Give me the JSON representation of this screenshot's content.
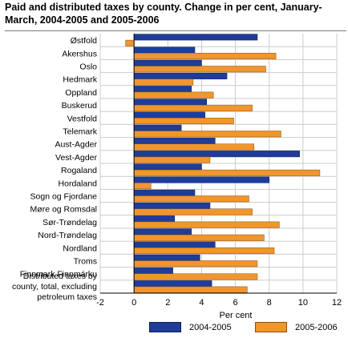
{
  "chart_data": {
    "type": "bar",
    "orientation": "horizontal",
    "title": "Paid and distributed taxes by county. Change in per cent, January-March, 2004-2005 and 2005-2006",
    "xlabel": "Per cent",
    "ylabel": "",
    "xlim": [
      -2,
      12
    ],
    "xticks": [
      -2,
      0,
      2,
      4,
      6,
      8,
      10,
      12
    ],
    "grid": "vertical",
    "legend_position": "bottom",
    "categories": [
      "Østfold",
      "Akershus",
      "Oslo",
      "Hedmark",
      "Oppland",
      "Buskerud",
      "Vestfold",
      "Telemark",
      "Aust-Agder",
      "Vest-Agder",
      "Rogaland",
      "Hordaland",
      "Sogn og Fjordane",
      "Møre og Romsdal",
      "Sør-Trøndelag",
      "Nord-Trøndelag",
      "Nordland",
      "Troms",
      "Finnmark Finnmárku",
      "Distributed taxes by county, total, excluding petroleum taxes"
    ],
    "series": [
      {
        "name": "2004-2005",
        "color": "#1f3c99",
        "values": [
          7.3,
          3.6,
          4.0,
          5.5,
          3.4,
          4.3,
          4.2,
          2.8,
          4.8,
          9.8,
          4.0,
          8.0,
          3.6,
          4.5,
          2.4,
          3.4,
          4.8,
          3.9,
          2.3,
          4.6
        ]
      },
      {
        "name": "2005-2006",
        "color": "#f0962d",
        "values": [
          -0.5,
          8.4,
          7.8,
          3.5,
          4.7,
          7.0,
          5.9,
          8.7,
          7.1,
          4.5,
          11.0,
          1.0,
          6.8,
          7.0,
          8.6,
          7.7,
          8.3,
          7.3,
          7.3,
          6.7
        ]
      }
    ]
  },
  "colors": {
    "series_2004_2005": "#1f3c99",
    "series_2005_2006": "#f0962d",
    "grid": "#cccccc",
    "title_rule": "#7a7a7a"
  }
}
